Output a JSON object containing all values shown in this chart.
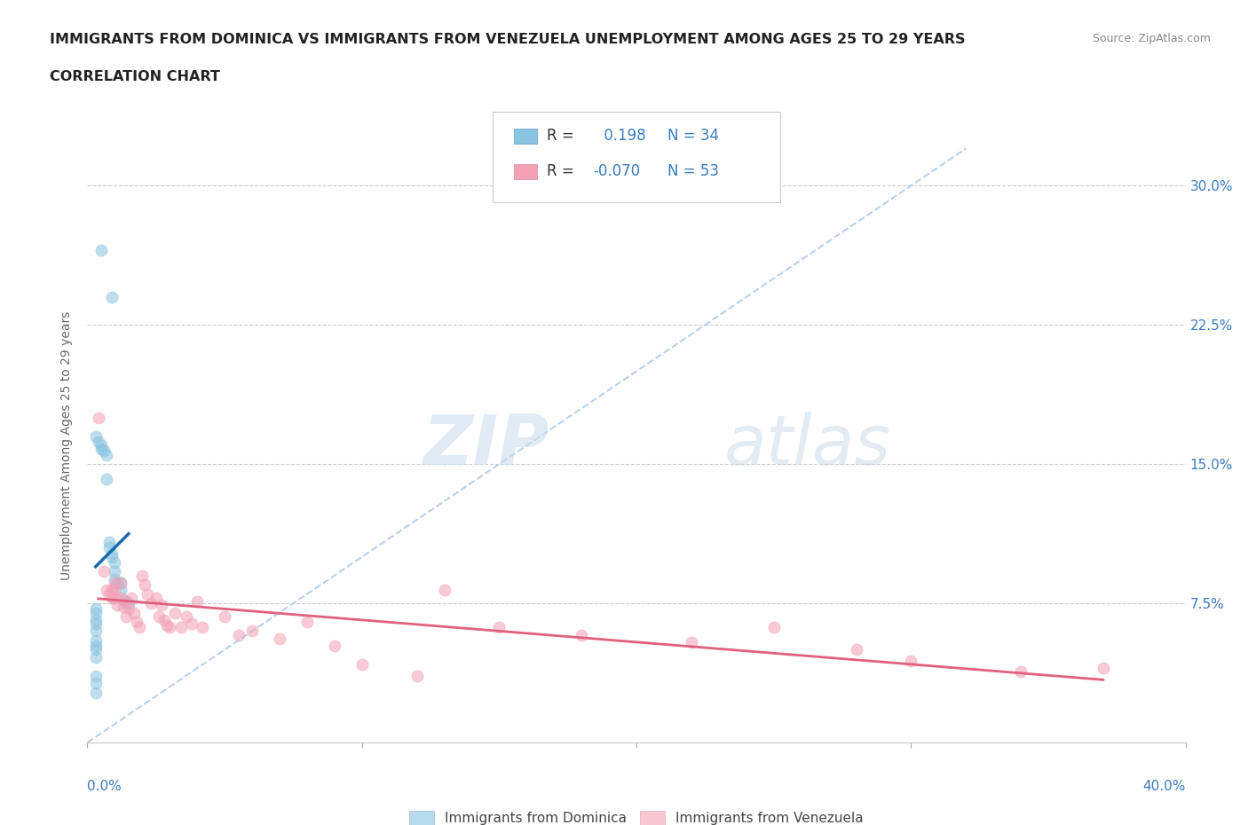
{
  "title_line1": "IMMIGRANTS FROM DOMINICA VS IMMIGRANTS FROM VENEZUELA UNEMPLOYMENT AMONG AGES 25 TO 29 YEARS",
  "title_line2": "CORRELATION CHART",
  "source": "Source: ZipAtlas.com",
  "ylabel": "Unemployment Among Ages 25 to 29 years",
  "xlim": [
    0.0,
    0.4
  ],
  "ylim": [
    0.0,
    0.32
  ],
  "yticks": [
    0.075,
    0.15,
    0.225,
    0.3
  ],
  "ytick_labels": [
    "7.5%",
    "15.0%",
    "22.5%",
    "30.0%"
  ],
  "xticks": [
    0.0,
    0.1,
    0.2,
    0.3,
    0.4
  ],
  "xtick_labels_bottom": [
    "0.0%",
    "",
    "",
    "",
    "40.0%"
  ],
  "dominica_R": 0.198,
  "dominica_N": 34,
  "venezuela_R": -0.07,
  "venezuela_N": 53,
  "dominica_color": "#89c4e1",
  "venezuela_color": "#f4a0b5",
  "dominica_line_color": "#1a6aab",
  "venezuela_line_color": "#e06080",
  "diagonal_color": "#b8d0e8",
  "background_color": "#ffffff",
  "dominica_x": [
    0.005,
    0.009,
    0.003,
    0.004,
    0.005,
    0.005,
    0.006,
    0.007,
    0.007,
    0.008,
    0.008,
    0.009,
    0.009,
    0.01,
    0.01,
    0.01,
    0.011,
    0.012,
    0.012,
    0.013,
    0.014,
    0.015,
    0.003,
    0.003,
    0.003,
    0.003,
    0.003,
    0.003,
    0.003,
    0.003,
    0.003,
    0.003,
    0.003,
    0.003
  ],
  "dominica_y": [
    0.265,
    0.24,
    0.165,
    0.162,
    0.16,
    0.158,
    0.157,
    0.155,
    0.142,
    0.108,
    0.105,
    0.102,
    0.1,
    0.097,
    0.092,
    0.088,
    0.086,
    0.086,
    0.082,
    0.077,
    0.075,
    0.075,
    0.072,
    0.07,
    0.066,
    0.064,
    0.06,
    0.055,
    0.052,
    0.05,
    0.046,
    0.036,
    0.032,
    0.027
  ],
  "venezuela_x": [
    0.004,
    0.006,
    0.007,
    0.008,
    0.009,
    0.009,
    0.01,
    0.01,
    0.01,
    0.011,
    0.012,
    0.012,
    0.013,
    0.014,
    0.014,
    0.015,
    0.016,
    0.017,
    0.018,
    0.019,
    0.02,
    0.021,
    0.022,
    0.023,
    0.025,
    0.026,
    0.027,
    0.028,
    0.029,
    0.03,
    0.032,
    0.034,
    0.036,
    0.038,
    0.04,
    0.042,
    0.05,
    0.055,
    0.06,
    0.07,
    0.08,
    0.09,
    0.1,
    0.12,
    0.13,
    0.15,
    0.18,
    0.22,
    0.25,
    0.28,
    0.3,
    0.34,
    0.37
  ],
  "venezuela_y": [
    0.175,
    0.092,
    0.082,
    0.08,
    0.082,
    0.078,
    0.086,
    0.082,
    0.078,
    0.074,
    0.086,
    0.078,
    0.073,
    0.076,
    0.068,
    0.072,
    0.078,
    0.07,
    0.065,
    0.062,
    0.09,
    0.085,
    0.08,
    0.075,
    0.078,
    0.068,
    0.074,
    0.066,
    0.063,
    0.062,
    0.07,
    0.062,
    0.068,
    0.064,
    0.076,
    0.062,
    0.068,
    0.058,
    0.06,
    0.056,
    0.065,
    0.052,
    0.042,
    0.036,
    0.082,
    0.062,
    0.058,
    0.054,
    0.062,
    0.05,
    0.044,
    0.038,
    0.04
  ]
}
